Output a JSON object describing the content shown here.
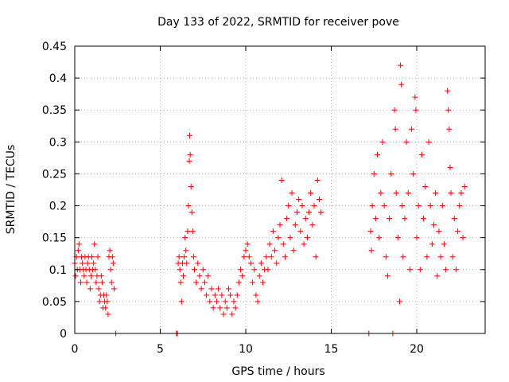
{
  "chart_data": {
    "type": "scatter",
    "title": "Day 133 of 2022, SRMTID for receiver pove",
    "xlabel": "GPS time / hours",
    "ylabel": "SRMTID / TECUs",
    "xlim": [
      0,
      24
    ],
    "ylim": [
      0,
      0.45
    ],
    "xticks": [
      0,
      5,
      10,
      15,
      20
    ],
    "yticks": [
      0,
      0.05,
      0.1,
      0.15,
      0.2,
      0.25,
      0.3,
      0.35,
      0.4,
      0.45
    ],
    "grid": true,
    "marker": "+",
    "color": "#ff0000",
    "series": [
      {
        "name": "SRMTID",
        "points": [
          [
            0.0,
            0.11
          ],
          [
            0.05,
            0.09
          ],
          [
            0.1,
            0.12
          ],
          [
            0.15,
            0.1
          ],
          [
            0.2,
            0.13
          ],
          [
            0.25,
            0.14
          ],
          [
            0.3,
            0.1
          ],
          [
            0.35,
            0.08
          ],
          [
            0.4,
            0.12
          ],
          [
            0.45,
            0.11
          ],
          [
            0.5,
            0.1
          ],
          [
            0.55,
            0.09
          ],
          [
            0.6,
            0.12
          ],
          [
            0.65,
            0.1
          ],
          [
            0.7,
            0.08
          ],
          [
            0.75,
            0.11
          ],
          [
            0.8,
            0.12
          ],
          [
            0.85,
            0.1
          ],
          [
            0.9,
            0.07
          ],
          [
            0.95,
            0.09
          ],
          [
            1.0,
            0.12
          ],
          [
            1.05,
            0.1
          ],
          [
            1.1,
            0.11
          ],
          [
            1.15,
            0.14
          ],
          [
            1.2,
            0.1
          ],
          [
            1.25,
            0.08
          ],
          [
            1.3,
            0.09
          ],
          [
            1.35,
            0.12
          ],
          [
            1.4,
            0.07
          ],
          [
            1.45,
            0.05
          ],
          [
            1.5,
            0.06
          ],
          [
            1.55,
            0.09
          ],
          [
            1.6,
            0.08
          ],
          [
            1.65,
            0.04
          ],
          [
            1.7,
            0.06
          ],
          [
            1.75,
            0.05
          ],
          [
            1.8,
            0.04
          ],
          [
            1.85,
            0.06
          ],
          [
            1.9,
            0.05
          ],
          [
            1.95,
            0.03
          ],
          [
            2.0,
            0.12
          ],
          [
            2.05,
            0.13
          ],
          [
            2.1,
            0.1
          ],
          [
            2.15,
            0.08
          ],
          [
            2.2,
            0.12
          ],
          [
            2.25,
            0.11
          ],
          [
            2.3,
            0.07
          ],
          [
            2.4,
            0.0
          ],
          [
            5.95,
            0.0
          ],
          [
            6.0,
            0.0
          ],
          [
            6.05,
            0.11
          ],
          [
            6.1,
            0.12
          ],
          [
            6.15,
            0.1
          ],
          [
            6.2,
            0.08
          ],
          [
            6.25,
            0.05
          ],
          [
            6.3,
            0.11
          ],
          [
            6.35,
            0.09
          ],
          [
            6.4,
            0.12
          ],
          [
            6.45,
            0.15
          ],
          [
            6.5,
            0.13
          ],
          [
            6.55,
            0.11
          ],
          [
            6.6,
            0.16
          ],
          [
            6.65,
            0.2
          ],
          [
            6.7,
            0.27
          ],
          [
            6.72,
            0.31
          ],
          [
            6.75,
            0.28
          ],
          [
            6.8,
            0.23
          ],
          [
            6.85,
            0.19
          ],
          [
            6.9,
            0.16
          ],
          [
            6.95,
            0.12
          ],
          [
            7.0,
            0.1
          ],
          [
            7.1,
            0.08
          ],
          [
            7.2,
            0.11
          ],
          [
            7.3,
            0.09
          ],
          [
            7.4,
            0.07
          ],
          [
            7.5,
            0.1
          ],
          [
            7.6,
            0.08
          ],
          [
            7.7,
            0.06
          ],
          [
            7.8,
            0.09
          ],
          [
            7.9,
            0.05
          ],
          [
            8.0,
            0.07
          ],
          [
            8.1,
            0.04
          ],
          [
            8.2,
            0.06
          ],
          [
            8.3,
            0.05
          ],
          [
            8.4,
            0.07
          ],
          [
            8.5,
            0.04
          ],
          [
            8.6,
            0.06
          ],
          [
            8.7,
            0.03
          ],
          [
            8.8,
            0.05
          ],
          [
            8.9,
            0.04
          ],
          [
            9.0,
            0.07
          ],
          [
            9.1,
            0.06
          ],
          [
            9.2,
            0.03
          ],
          [
            9.3,
            0.05
          ],
          [
            9.4,
            0.04
          ],
          [
            9.5,
            0.06
          ],
          [
            9.6,
            0.08
          ],
          [
            9.7,
            0.1
          ],
          [
            9.8,
            0.09
          ],
          [
            9.9,
            0.12
          ],
          [
            10.0,
            0.13
          ],
          [
            10.1,
            0.14
          ],
          [
            10.2,
            0.12
          ],
          [
            10.3,
            0.11
          ],
          [
            10.4,
            0.08
          ],
          [
            10.5,
            0.1
          ],
          [
            10.6,
            0.06
          ],
          [
            10.7,
            0.05
          ],
          [
            10.8,
            0.09
          ],
          [
            10.9,
            0.11
          ],
          [
            11.0,
            0.08
          ],
          [
            11.1,
            0.1
          ],
          [
            11.2,
            0.12
          ],
          [
            11.3,
            0.1
          ],
          [
            11.4,
            0.14
          ],
          [
            11.5,
            0.12
          ],
          [
            11.6,
            0.16
          ],
          [
            11.7,
            0.13
          ],
          [
            11.8,
            0.11
          ],
          [
            11.9,
            0.15
          ],
          [
            12.0,
            0.17
          ],
          [
            12.1,
            0.24
          ],
          [
            12.2,
            0.14
          ],
          [
            12.3,
            0.12
          ],
          [
            12.4,
            0.18
          ],
          [
            12.5,
            0.2
          ],
          [
            12.6,
            0.15
          ],
          [
            12.7,
            0.22
          ],
          [
            12.8,
            0.13
          ],
          [
            12.9,
            0.17
          ],
          [
            13.0,
            0.19
          ],
          [
            13.1,
            0.21
          ],
          [
            13.2,
            0.16
          ],
          [
            13.3,
            0.2
          ],
          [
            13.4,
            0.14
          ],
          [
            13.5,
            0.18
          ],
          [
            13.6,
            0.15
          ],
          [
            13.7,
            0.19
          ],
          [
            13.8,
            0.22
          ],
          [
            13.9,
            0.17
          ],
          [
            14.0,
            0.2
          ],
          [
            14.1,
            0.12
          ],
          [
            14.2,
            0.24
          ],
          [
            14.3,
            0.21
          ],
          [
            14.4,
            0.19
          ],
          [
            17.2,
            0.0
          ],
          [
            17.3,
            0.16
          ],
          [
            17.35,
            0.13
          ],
          [
            17.4,
            0.2
          ],
          [
            17.5,
            0.25
          ],
          [
            17.6,
            0.18
          ],
          [
            17.7,
            0.28
          ],
          [
            17.8,
            0.15
          ],
          [
            17.9,
            0.22
          ],
          [
            18.0,
            0.3
          ],
          [
            18.1,
            0.2
          ],
          [
            18.2,
            0.12
          ],
          [
            18.3,
            0.09
          ],
          [
            18.4,
            0.18
          ],
          [
            18.5,
            0.25
          ],
          [
            18.6,
            0.0
          ],
          [
            18.7,
            0.35
          ],
          [
            18.75,
            0.32
          ],
          [
            18.8,
            0.22
          ],
          [
            18.9,
            0.15
          ],
          [
            19.0,
            0.05
          ],
          [
            19.05,
            0.42
          ],
          [
            19.1,
            0.39
          ],
          [
            19.15,
            0.2
          ],
          [
            19.2,
            0.12
          ],
          [
            19.3,
            0.18
          ],
          [
            19.4,
            0.3
          ],
          [
            19.5,
            0.22
          ],
          [
            19.6,
            0.1
          ],
          [
            19.7,
            0.32
          ],
          [
            19.8,
            0.25
          ],
          [
            19.9,
            0.37
          ],
          [
            19.95,
            0.35
          ],
          [
            20.0,
            0.15
          ],
          [
            20.1,
            0.2
          ],
          [
            20.2,
            0.1
          ],
          [
            20.3,
            0.28
          ],
          [
            20.4,
            0.18
          ],
          [
            20.5,
            0.23
          ],
          [
            20.6,
            0.12
          ],
          [
            20.7,
            0.3
          ],
          [
            20.8,
            0.2
          ],
          [
            20.9,
            0.14
          ],
          [
            21.0,
            0.17
          ],
          [
            21.1,
            0.22
          ],
          [
            21.2,
            0.09
          ],
          [
            21.3,
            0.16
          ],
          [
            21.4,
            0.12
          ],
          [
            21.5,
            0.2
          ],
          [
            21.6,
            0.14
          ],
          [
            21.7,
            0.1
          ],
          [
            21.8,
            0.38
          ],
          [
            21.85,
            0.35
          ],
          [
            21.9,
            0.32
          ],
          [
            21.95,
            0.26
          ],
          [
            22.0,
            0.22
          ],
          [
            22.1,
            0.12
          ],
          [
            22.2,
            0.18
          ],
          [
            22.3,
            0.1
          ],
          [
            22.4,
            0.16
          ],
          [
            22.5,
            0.2
          ],
          [
            22.6,
            0.22
          ],
          [
            22.7,
            0.15
          ],
          [
            22.8,
            0.23
          ]
        ]
      }
    ]
  }
}
